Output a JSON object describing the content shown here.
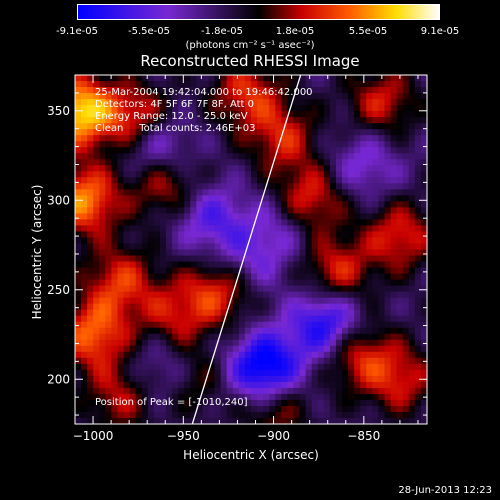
{
  "colorbar": {
    "ticks": [
      "-9.1e-05",
      "-5.5e-05",
      "-1.8e-05",
      "1.8e-05",
      "5.5e-05",
      "9.1e-05"
    ],
    "unit": "(photons cm⁻² s⁻¹ asec⁻²)"
  },
  "chart_data": {
    "type": "heatmap",
    "title": "Reconstructed RHESSI Image",
    "xlabel": "Heliocentric X (arcsec)",
    "ylabel": "Heliocentric Y (arcsec)",
    "xlim": [
      -1010,
      -815
    ],
    "ylim": [
      175,
      370
    ],
    "x_ticks": [
      -1000,
      -950,
      -900,
      -850
    ],
    "y_ticks": [
      200,
      250,
      300,
      350
    ],
    "color_range": [
      -9.1e-05,
      9.1e-05
    ],
    "limb_line": [
      [
        -945,
        175
      ],
      [
        -885,
        370
      ]
    ],
    "peak_marker": [
      -1010,
      240
    ],
    "hot_spots": [
      [
        -1008,
        350,
        1.0
      ],
      [
        -1005,
        300,
        0.8
      ],
      [
        -1000,
        225,
        0.7
      ],
      [
        -985,
        255,
        0.55
      ],
      [
        -975,
        345,
        0.65
      ],
      [
        -960,
        310,
        0.55
      ],
      [
        -955,
        235,
        0.45
      ],
      [
        -930,
        250,
        0.6
      ],
      [
        -915,
        360,
        0.55
      ],
      [
        -895,
        335,
        0.5
      ],
      [
        -880,
        300,
        0.6
      ],
      [
        -865,
        260,
        0.55
      ],
      [
        -855,
        215,
        0.6
      ],
      [
        -840,
        355,
        0.5
      ],
      [
        -830,
        280,
        0.55
      ],
      [
        -830,
        200,
        0.5
      ],
      [
        -900,
        185,
        0.5
      ],
      [
        -945,
        200,
        0.4
      ],
      [
        -985,
        190,
        0.45
      ]
    ],
    "cold_spots": [
      [
        -965,
        330,
        -0.6
      ],
      [
        -935,
        290,
        -0.45
      ],
      [
        -905,
        205,
        -1.0
      ],
      [
        -870,
        230,
        -0.8
      ],
      [
        -915,
        265,
        -0.35
      ],
      [
        -960,
        205,
        -0.4
      ],
      [
        -895,
        285,
        -0.3
      ],
      [
        -850,
        320,
        -0.35
      ]
    ]
  },
  "info": {
    "line1": "25-Mar-2004 19:42:04.000 to 19:46:42.000",
    "line2": "Detectors: 4F 5F 6F 7F 8F, Att 0",
    "line3": "Energy Range: 12.0 - 25.0 keV",
    "line4": "Clean     Total counts: 2.46E+03",
    "peak": "Position of Peak = [-1010,240]"
  },
  "date": "28-Jun-2013 12:23"
}
